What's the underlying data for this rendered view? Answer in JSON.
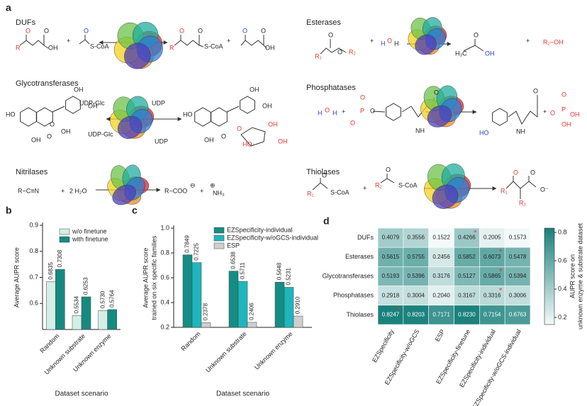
{
  "panel_a": {
    "label": "a",
    "reactions": [
      {
        "name": "DUFs",
        "labels": [
          "O",
          "R",
          "O",
          "OH",
          "+",
          "O",
          "S-CoA",
          "O",
          "R",
          "O",
          "S-CoA",
          "+",
          "O",
          "O",
          "OH"
        ]
      },
      {
        "name": "Esterases",
        "labels": [
          "R₁",
          "O",
          "O",
          "R₂",
          "+",
          "H",
          "O",
          "H",
          "H₃C",
          "O",
          "OH",
          "+",
          "R₂−OH"
        ]
      },
      {
        "name": "Glycotransferases",
        "labels": [
          "OH",
          "OH",
          "HO",
          "O",
          "OH",
          "O",
          "OH",
          "UDP-Glc",
          "UDP",
          "UDP-Glc",
          "UDP",
          "OH",
          "OH",
          "HO",
          "OH",
          "O",
          "O",
          "OH",
          "HO",
          "OH"
        ]
      },
      {
        "name": "Phosphatases",
        "labels": [
          "H",
          "O",
          "H",
          "+",
          "O",
          "P",
          "O",
          "O",
          "NH",
          "O",
          "HO",
          "NH",
          "O",
          "+",
          "O",
          "P",
          "O",
          "OH",
          "OH"
        ]
      },
      {
        "name": "Nitrilases",
        "labels": [
          "R−C≡N",
          "+",
          "2 H₂O",
          "R−COO",
          "⊖",
          "+",
          "⊕",
          "NH₃"
        ]
      },
      {
        "name": "Thiolases",
        "labels": [
          "R₁",
          "O",
          "S-CoA",
          "+",
          "R₂",
          "O",
          "S-CoA",
          "R₁",
          "O",
          "O",
          "R₂",
          "O⁻"
        ]
      }
    ]
  },
  "chart_data": [
    {
      "type": "bar",
      "panel": "b",
      "ylabel": [
        "Average AUPR score"
      ],
      "xlabel": "Dataset scenario",
      "categories": [
        "Random",
        "Unknown substrate",
        "Unknown enzyme"
      ],
      "series": [
        {
          "name": "w/o finetune",
          "color": "#d4efe8",
          "values": [
            0.6835,
            0.5534,
            0.573
          ],
          "value_labels": [
            "0.6835",
            "0.5534",
            "0.5730"
          ]
        },
        {
          "name": "with finetune",
          "color": "#178a7f",
          "values": [
            0.7308,
            0.6253,
            0.5764
          ],
          "value_labels": [
            "0.7308",
            "0.6253",
            "0.5764"
          ]
        }
      ],
      "ylim": [
        0.5,
        0.9
      ],
      "yticks": [
        0.6,
        0.7,
        0.8,
        0.9
      ],
      "legend": "upper center"
    },
    {
      "type": "bar",
      "panel": "c",
      "ylabel": [
        "Average AUPR score",
        "trained on six specific families"
      ],
      "xlabel": "Dataset scenario",
      "categories": [
        "Random",
        "Unknown substrate",
        "Unknown enzyme"
      ],
      "series": [
        {
          "name": "EZSpecificity-individual",
          "color": "#148d85",
          "values": [
            0.7849,
            0.6538,
            0.5648
          ],
          "value_labels": [
            "0.7849",
            "0.6538",
            "0.5648"
          ]
        },
        {
          "name": "EZSpecificity-w/oGCS-individual",
          "color": "#1eb6bc",
          "values": [
            0.7225,
            0.5711,
            0.5231
          ],
          "value_labels": [
            "0.7225",
            "0.5711",
            "0.5231"
          ]
        },
        {
          "name": "ESP",
          "color": "#cfcfcf",
          "values": [
            0.2378,
            0.2406,
            0.291
          ],
          "value_labels": [
            "0.2378",
            "0.2406",
            "0.2910"
          ]
        }
      ],
      "ylim": [
        0.2,
        1.0
      ],
      "yticks": [
        0.2,
        0.4,
        0.6,
        0.8,
        {
          "value": 1.0,
          "label": "1.0"
        }
      ],
      "legend": "upper right"
    },
    {
      "type": "heatmap",
      "panel": "d",
      "rows": [
        "DUFs",
        "Esterases",
        "Glycotransferases",
        "Phosphatases",
        "Thiolases"
      ],
      "columns": [
        "EZSpecificity",
        "EZSpecificity-w/oGCS",
        "ESP",
        "EZSpecificity-finetune",
        "EZSpecificity-individual",
        "EZSpecificity-w/oGCS-individual"
      ],
      "values": [
        [
          0.4079,
          0.3556,
          0.1522,
          0.4266,
          0.2005,
          0.1573
        ],
        [
          0.5615,
          0.5755,
          0.2456,
          0.5852,
          0.6073,
          0.5478
        ],
        [
          0.5193,
          0.5396,
          0.3176,
          0.5127,
          0.5865,
          0.5394
        ],
        [
          0.2918,
          0.3004,
          0.204,
          0.3167,
          0.3316,
          0.3006
        ],
        [
          0.8247,
          0.8203,
          0.7171,
          0.823,
          0.7154,
          0.6763
        ]
      ],
      "value_labels": [
        [
          "0.4079",
          "0.3556",
          "0.1522",
          "0.4266",
          "0.2005",
          "0.1573"
        ],
        [
          "0.5615",
          "0.5755",
          "0.2456",
          "0.5852",
          "0.6073",
          "0.5478"
        ],
        [
          "0.5193",
          "0.5396",
          "0.3176",
          "0.5127",
          "0.5865",
          "0.5394"
        ],
        [
          "0.2918",
          "0.3004",
          "0.2040",
          "0.3167",
          "0.3316",
          "0.3006"
        ],
        [
          "0.8247",
          "0.8203",
          "0.7171",
          "0.8230",
          "0.7154",
          "0.6763"
        ]
      ],
      "best_column": [
        3,
        4,
        4,
        4,
        0
      ],
      "star_symbol": "*",
      "colormap": [
        "#f4faf9",
        "#19807b"
      ],
      "clim": [
        0.15,
        0.83
      ],
      "cticks": [
        0.2,
        0.4,
        0.6,
        0.8
      ],
      "clabel": [
        "AUPR score on",
        "unknown enzyme & substrate dataset"
      ]
    }
  ]
}
